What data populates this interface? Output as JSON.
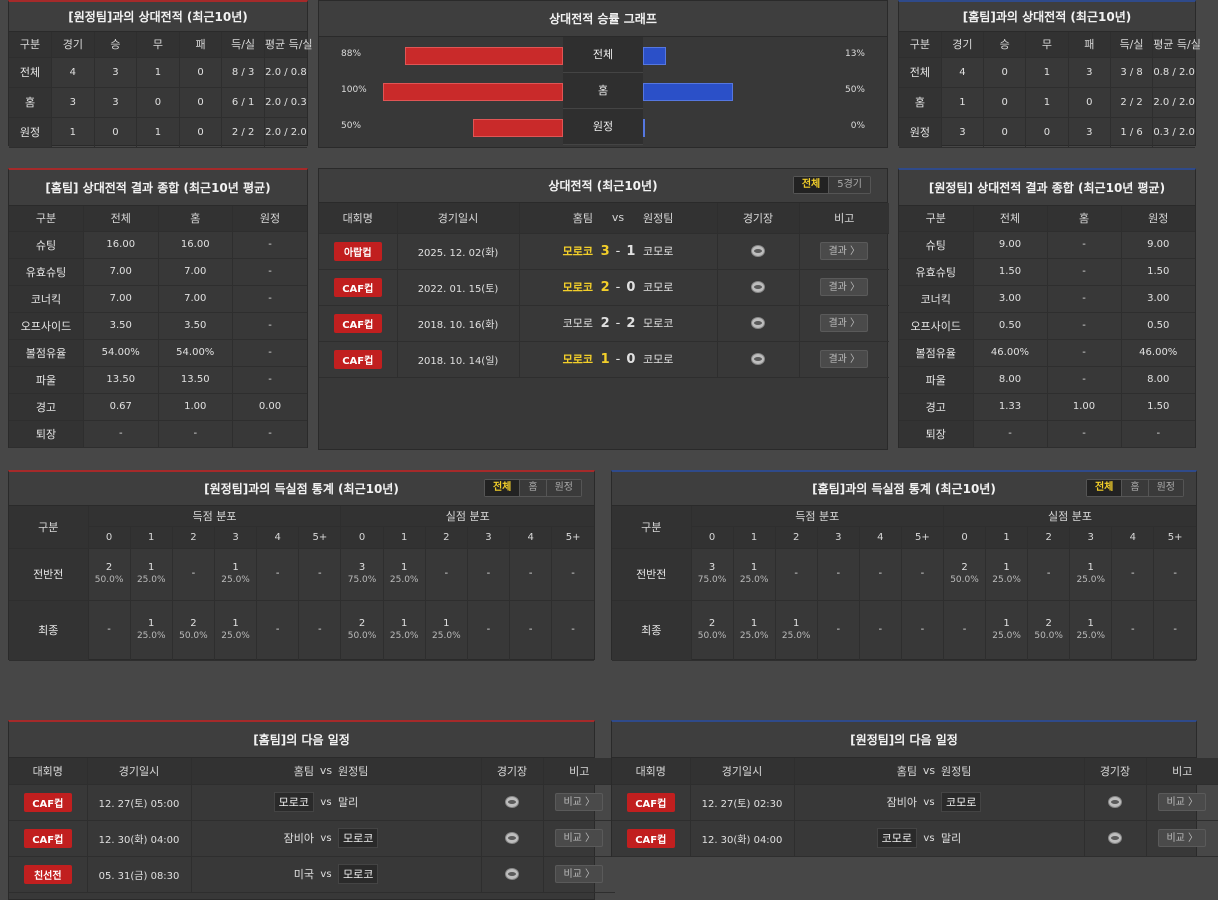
{
  "h2h_away": {
    "title": "[원정팀]과의 상대전적 (최근10년)",
    "headers": [
      "구분",
      "경기",
      "승",
      "무",
      "패",
      "득/실",
      "평균 득/실"
    ],
    "rows": [
      [
        "전체",
        "4",
        "3",
        "1",
        "0",
        "8 / 3",
        "2.0 / 0.8"
      ],
      [
        "홈",
        "3",
        "3",
        "0",
        "0",
        "6 / 1",
        "2.0 / 0.3"
      ],
      [
        "원정",
        "1",
        "0",
        "1",
        "0",
        "2 / 2",
        "2.0 / 2.0"
      ]
    ]
  },
  "winrate": {
    "title": "상대전적 승률 그래프",
    "rows": [
      {
        "label": "전체",
        "left": "88%",
        "right": "13%",
        "lv": 88,
        "rv": 13
      },
      {
        "label": "홈",
        "left": "100%",
        "right": "50%",
        "lv": 100,
        "rv": 50
      },
      {
        "label": "원정",
        "left": "50%",
        "right": "0%",
        "lv": 50,
        "rv": 0
      }
    ]
  },
  "h2h_home": {
    "title": "[홈팀]과의 상대전적 (최근10년)",
    "headers": [
      "구분",
      "경기",
      "승",
      "무",
      "패",
      "득/실",
      "평균 득/실"
    ],
    "rows": [
      [
        "전체",
        "4",
        "0",
        "1",
        "3",
        "3 / 8",
        "0.8 / 2.0"
      ],
      [
        "홈",
        "1",
        "0",
        "1",
        "0",
        "2 / 2",
        "2.0 / 2.0"
      ],
      [
        "원정",
        "3",
        "0",
        "0",
        "3",
        "1 / 6",
        "0.3 / 2.0"
      ]
    ]
  },
  "summary_home": {
    "title": "[홈팀] 상대전적 결과 종합 (최근10년 평균)",
    "headers": [
      "구분",
      "전체",
      "홈",
      "원정"
    ],
    "rows": [
      [
        "슈팅",
        "16.00",
        "16.00",
        "-"
      ],
      [
        "유효슈팅",
        "7.00",
        "7.00",
        "-"
      ],
      [
        "코너킥",
        "7.00",
        "7.00",
        "-"
      ],
      [
        "오프사이드",
        "3.50",
        "3.50",
        "-"
      ],
      [
        "볼점유율",
        "54.00%",
        "54.00%",
        "-"
      ],
      [
        "파울",
        "13.50",
        "13.50",
        "-"
      ],
      [
        "경고",
        "0.67",
        "1.00",
        "0.00"
      ],
      [
        "퇴장",
        "-",
        "-",
        "-"
      ]
    ]
  },
  "h2h_matches": {
    "title": "상대전적 (최근10년)",
    "tabs": [
      "전체",
      "5경기"
    ],
    "headers": {
      "comp": "대회명",
      "date": "경기일시",
      "home": "홈팀",
      "vs": "vs",
      "away": "원정팀",
      "venue": "경기장",
      "note": "비고"
    },
    "rows": [
      {
        "comp": "아랍컵",
        "date": "2025. 12. 02(화)",
        "home": "모로코",
        "hs": "3",
        "sep": "-",
        "as": "1",
        "away": "코모로",
        "btn": "결과 〉",
        "homeWin": true
      },
      {
        "comp": "CAF컵",
        "date": "2022. 01. 15(토)",
        "home": "모로코",
        "hs": "2",
        "sep": "-",
        "as": "0",
        "away": "코모로",
        "btn": "결과 〉",
        "homeWin": true
      },
      {
        "comp": "CAF컵",
        "date": "2018. 10. 16(화)",
        "home": "코모로",
        "hs": "2",
        "sep": "-",
        "as": "2",
        "away": "모로코",
        "btn": "결과 〉",
        "homeWin": false
      },
      {
        "comp": "CAF컵",
        "date": "2018. 10. 14(일)",
        "home": "모로코",
        "hs": "1",
        "sep": "-",
        "as": "0",
        "away": "코모로",
        "btn": "결과 〉",
        "homeWin": true
      }
    ]
  },
  "summary_away": {
    "title": "[원정팀] 상대전적 결과 종합 (최근10년 평균)",
    "headers": [
      "구분",
      "전체",
      "홈",
      "원정"
    ],
    "rows": [
      [
        "슈팅",
        "9.00",
        "-",
        "9.00"
      ],
      [
        "유효슈팅",
        "1.50",
        "-",
        "1.50"
      ],
      [
        "코너킥",
        "3.00",
        "-",
        "3.00"
      ],
      [
        "오프사이드",
        "0.50",
        "-",
        "0.50"
      ],
      [
        "볼점유율",
        "46.00%",
        "-",
        "46.00%"
      ],
      [
        "파울",
        "8.00",
        "-",
        "8.00"
      ],
      [
        "경고",
        "1.33",
        "1.00",
        "1.50"
      ],
      [
        "퇴장",
        "-",
        "-",
        "-"
      ]
    ]
  },
  "goals_home": {
    "title": "[원정팀]과의 득실점 통계 (최근10년)",
    "tabs": [
      "전체",
      "홈",
      "원정"
    ],
    "label_col": "구분",
    "scored": "득점 분포",
    "conceded": "실점 분포",
    "cols": [
      "0",
      "1",
      "2",
      "3",
      "4",
      "5+"
    ],
    "rows": [
      {
        "label": "전반전",
        "cells": [
          [
            "2",
            "50.0%"
          ],
          [
            "1",
            "25.0%"
          ],
          [
            "-",
            ""
          ],
          [
            "1",
            "25.0%"
          ],
          [
            "-",
            ""
          ],
          [
            "-",
            ""
          ],
          [
            "3",
            "75.0%"
          ],
          [
            "1",
            "25.0%"
          ],
          [
            "-",
            ""
          ],
          [
            "-",
            ""
          ],
          [
            "-",
            ""
          ],
          [
            "-",
            ""
          ]
        ]
      },
      {
        "label": "최종",
        "cells": [
          [
            "-",
            ""
          ],
          [
            "1",
            "25.0%"
          ],
          [
            "2",
            "50.0%"
          ],
          [
            "1",
            "25.0%"
          ],
          [
            "-",
            ""
          ],
          [
            "-",
            ""
          ],
          [
            "2",
            "50.0%"
          ],
          [
            "1",
            "25.0%"
          ],
          [
            "1",
            "25.0%"
          ],
          [
            "-",
            ""
          ],
          [
            "-",
            ""
          ],
          [
            "-",
            ""
          ]
        ]
      }
    ]
  },
  "goals_away": {
    "title": "[홈팀]과의 득실점 통계 (최근10년)",
    "tabs": [
      "전체",
      "홈",
      "원정"
    ],
    "label_col": "구분",
    "scored": "득점 분포",
    "conceded": "실점 분포",
    "cols": [
      "0",
      "1",
      "2",
      "3",
      "4",
      "5+"
    ],
    "rows": [
      {
        "label": "전반전",
        "cells": [
          [
            "3",
            "75.0%"
          ],
          [
            "1",
            "25.0%"
          ],
          [
            "-",
            ""
          ],
          [
            "-",
            ""
          ],
          [
            "-",
            ""
          ],
          [
            "-",
            ""
          ],
          [
            "2",
            "50.0%"
          ],
          [
            "1",
            "25.0%"
          ],
          [
            "-",
            ""
          ],
          [
            "1",
            "25.0%"
          ],
          [
            "-",
            ""
          ],
          [
            "-",
            ""
          ]
        ]
      },
      {
        "label": "최종",
        "cells": [
          [
            "2",
            "50.0%"
          ],
          [
            "1",
            "25.0%"
          ],
          [
            "1",
            "25.0%"
          ],
          [
            "-",
            ""
          ],
          [
            "-",
            ""
          ],
          [
            "-",
            ""
          ],
          [
            "-",
            ""
          ],
          [
            "1",
            "25.0%"
          ],
          [
            "2",
            "50.0%"
          ],
          [
            "1",
            "25.0%"
          ],
          [
            "-",
            ""
          ],
          [
            "-",
            ""
          ]
        ]
      }
    ]
  },
  "next_home": {
    "title": "[홈팀]의 다음 일정",
    "headers": {
      "comp": "대회명",
      "date": "경기일시",
      "home": "홈팀",
      "vs": "vs",
      "away": "원정팀",
      "venue": "경기장",
      "note": "비고"
    },
    "rows": [
      {
        "comp": "CAF컵",
        "date": "12. 27(토) 05:00",
        "home": "모로코",
        "vs": "vs",
        "away": "말리",
        "btn": "비교 〉",
        "hl": "home"
      },
      {
        "comp": "CAF컵",
        "date": "12. 30(화) 04:00",
        "home": "잠비아",
        "vs": "vs",
        "away": "모로코",
        "btn": "비교 〉",
        "hl": "away"
      },
      {
        "comp": "친선전",
        "date": "05. 31(금) 08:30",
        "home": "미국",
        "vs": "vs",
        "away": "모로코",
        "btn": "비교 〉",
        "hl": "away"
      }
    ]
  },
  "next_away": {
    "title": "[원정팀]의 다음 일정",
    "headers": {
      "comp": "대회명",
      "date": "경기일시",
      "home": "홈팀",
      "vs": "vs",
      "away": "원정팀",
      "venue": "경기장",
      "note": "비고"
    },
    "rows": [
      {
        "comp": "CAF컵",
        "date": "12. 27(토) 02:30",
        "home": "잠비아",
        "vs": "vs",
        "away": "코모로",
        "btn": "비교 〉",
        "hl": "away"
      },
      {
        "comp": "CAF컵",
        "date": "12. 30(화) 04:00",
        "home": "코모로",
        "vs": "vs",
        "away": "말리",
        "btn": "비교 〉",
        "hl": "home"
      }
    ]
  }
}
